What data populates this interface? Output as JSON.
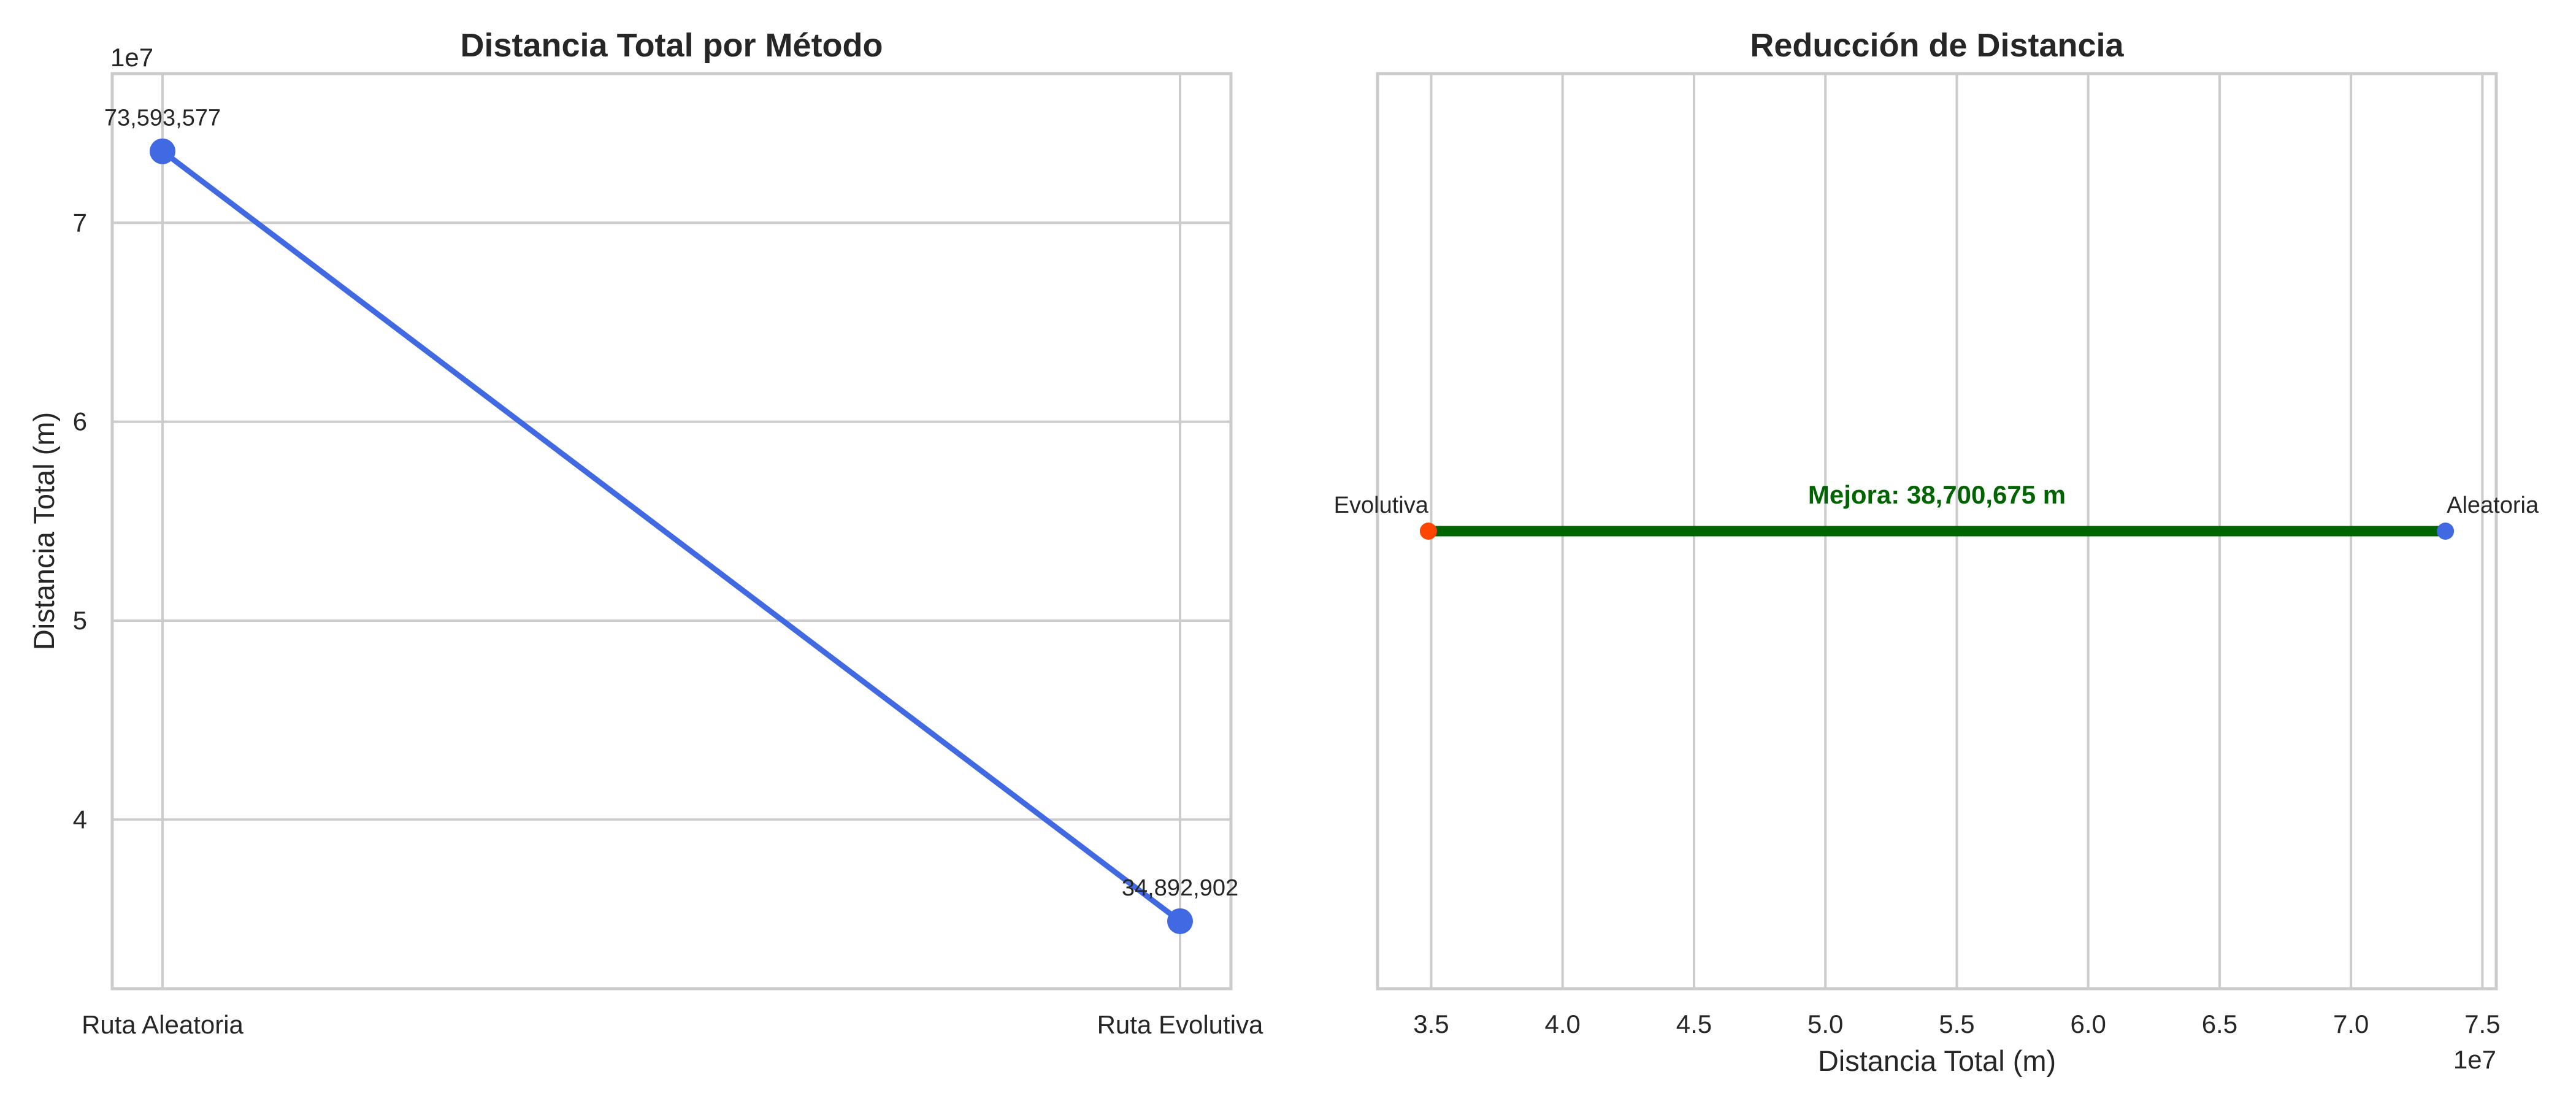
{
  "chart_data": [
    {
      "type": "line",
      "title": "Distancia Total por Método",
      "xlabel": "",
      "ylabel": "Distancia Total (m)",
      "categories": [
        "Ruta Aleatoria",
        "Ruta Evolutiva"
      ],
      "values": [
        73593577,
        34892902
      ],
      "value_labels": [
        "73,593,577",
        "34,892,902"
      ],
      "ylim": [
        31500000,
        77500000
      ],
      "yticks": [
        40000000,
        50000000,
        60000000,
        70000000
      ],
      "ytick_labels": [
        "4",
        "5",
        "6",
        "7"
      ],
      "y_offset_text": "1e7",
      "grid": true,
      "line_color": "#4169e1"
    },
    {
      "type": "line",
      "title": "Reducción de Distancia",
      "xlabel": "Distancia Total (m)",
      "ylabel": "",
      "xlim": [
        32958868,
        75527611
      ],
      "xticks": [
        35000000,
        40000000,
        45000000,
        50000000,
        55000000,
        60000000,
        65000000,
        70000000,
        75000000
      ],
      "xtick_labels": [
        "3.5",
        "4.0",
        "4.5",
        "5.0",
        "5.5",
        "6.0",
        "6.5",
        "7.0",
        "7.5"
      ],
      "x_offset_text": "1e7",
      "grid": true,
      "segment": {
        "from": 34892902,
        "to": 73593577,
        "color": "#006400"
      },
      "points": [
        {
          "label": "Evolutiva",
          "x": 34892902,
          "color": "#ff4500"
        },
        {
          "label": "Aleatoria",
          "x": 73593577,
          "color": "#4169e1"
        }
      ],
      "annotation": "Mejora: 38,700,675 m",
      "annotation_color": "#006400"
    }
  ]
}
